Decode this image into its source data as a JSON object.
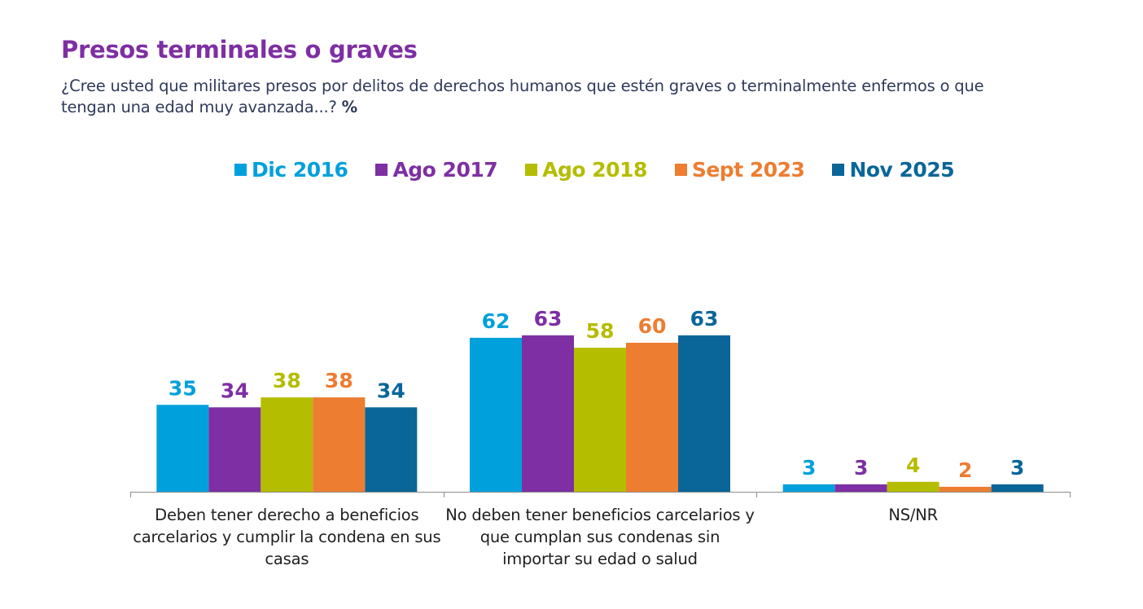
{
  "header": {
    "title": "Presos terminales o graves",
    "subtitle": "¿Cree usted que militares presos por delitos de derechos humanos que estén graves o terminalmente enfermos o que tengan una edad muy avanzada...?",
    "unit": "%"
  },
  "chart_data": {
    "type": "bar",
    "title": "Presos terminales o graves",
    "subtitle": "¿Cree usted que militares presos por delitos de derechos humanos que estén graves o terminalmente enfermos o que tengan una edad muy avanzada...? %",
    "xlabel": "",
    "ylabel": "",
    "ylim": [
      0,
      63
    ],
    "grid": false,
    "legend_position": "top",
    "categories": [
      "Deben tener derecho a beneficios carcelarios y cumplir la condena en sus casas",
      "No deben tener beneficios carcelarios y que cumplan sus condenas sin importar su edad o salud",
      "NS/NR"
    ],
    "series": [
      {
        "name": "Dic 2016",
        "color": "#00a0dc",
        "values": [
          35,
          62,
          3
        ]
      },
      {
        "name": "Ago 2017",
        "color": "#7e2fa3",
        "values": [
          34,
          63,
          3
        ]
      },
      {
        "name": "Ago 2018",
        "color": "#b5bd00",
        "values": [
          38,
          58,
          4
        ]
      },
      {
        "name": "Sept 2023",
        "color": "#ed7d31",
        "values": [
          38,
          60,
          2
        ]
      },
      {
        "name": "Nov 2025",
        "color": "#0a6699",
        "values": [
          34,
          63,
          3
        ]
      }
    ]
  }
}
